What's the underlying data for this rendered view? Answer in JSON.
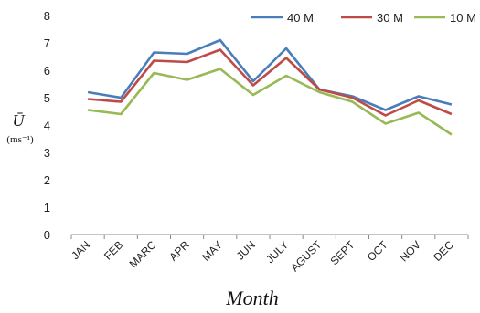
{
  "chart_data": {
    "type": "line",
    "title": "",
    "xlabel": "Month",
    "ylabel": "Ū",
    "ylabel_unit": "(ms⁻¹)",
    "ylim": [
      0,
      8
    ],
    "yticks": [
      "0",
      "1",
      "2",
      "3",
      "4",
      "5",
      "6",
      "7",
      "8"
    ],
    "grid": false,
    "legend_position": "top-right",
    "categories": [
      "JAN",
      "FEB",
      "MARC",
      "APR",
      "MAY",
      "JUN",
      "JULY",
      "AGUST",
      "SEPT",
      "OCT",
      "NOV",
      "DEC"
    ],
    "series": [
      {
        "name": "40 M",
        "color": "#4a7ebb",
        "values": [
          5.2,
          5.0,
          6.65,
          6.6,
          7.1,
          5.6,
          6.8,
          5.3,
          5.05,
          4.55,
          5.05,
          4.75
        ]
      },
      {
        "name": "30 M",
        "color": "#be4b48",
        "values": [
          4.95,
          4.85,
          6.35,
          6.3,
          6.75,
          5.45,
          6.45,
          5.3,
          5.0,
          4.35,
          4.9,
          4.4
        ]
      },
      {
        "name": "10 M",
        "color": "#98b954",
        "values": [
          4.55,
          4.4,
          5.9,
          5.65,
          6.05,
          5.1,
          5.8,
          5.2,
          4.85,
          4.05,
          4.45,
          3.65
        ]
      }
    ]
  }
}
